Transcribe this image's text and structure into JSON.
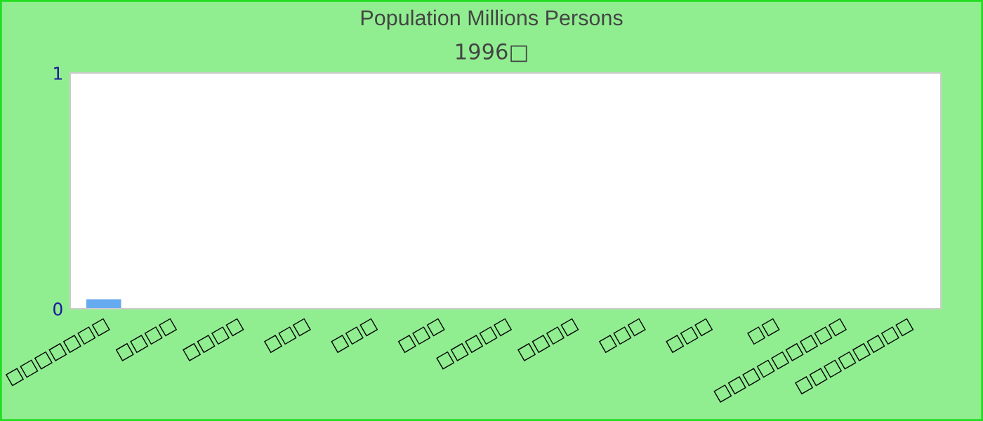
{
  "chart_data": {
    "type": "bar",
    "title": "Population Millions Persons",
    "subtitle": "1996□",
    "categories": [
      "□□□□□□□",
      "□□□□",
      "□□□□",
      "□□□",
      "□□□",
      "□□□",
      "□□□□□",
      "□□□□",
      "□□□",
      "□□□",
      "□□",
      "□□□□□□□□□",
      "□□□□□□□□"
    ],
    "values": [
      0.04,
      0,
      0,
      0,
      0,
      0,
      0,
      0,
      0,
      0,
      0,
      0,
      0
    ],
    "color": "#66aaf0",
    "ylim": [
      0,
      1
    ],
    "yticks": [
      0,
      1
    ],
    "grid": false,
    "legend": false
  }
}
